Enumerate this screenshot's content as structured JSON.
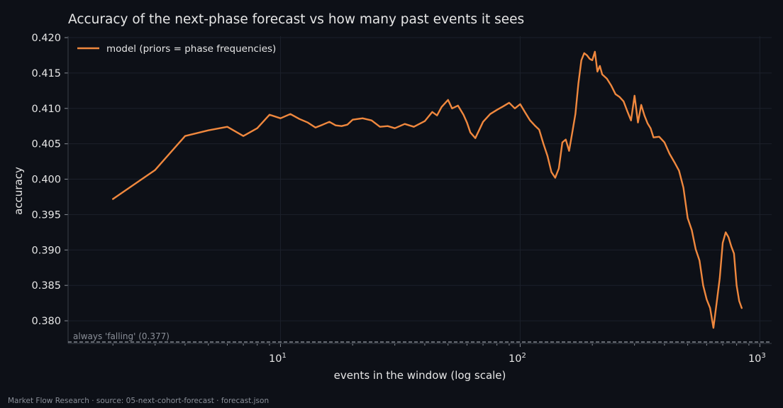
{
  "chart_data": {
    "type": "line",
    "title": "Accuracy of the next-phase forecast vs how many past events it sees",
    "xlabel": "events in the window (log scale)",
    "ylabel": "accuracy",
    "x_scale": "log",
    "xlim": [
      1.3,
      1120
    ],
    "ylim": [
      0.3768,
      0.4202
    ],
    "x_ticks": [
      10,
      100,
      1000
    ],
    "x_tick_labels": [
      {
        "base": "10",
        "exp": "1"
      },
      {
        "base": "10",
        "exp": "2"
      },
      {
        "base": "10",
        "exp": "3"
      }
    ],
    "y_ticks": [
      0.38,
      0.385,
      0.39,
      0.395,
      0.4,
      0.405,
      0.41,
      0.415,
      0.42
    ],
    "y_tick_labels": [
      "0.380",
      "0.385",
      "0.390",
      "0.395",
      "0.400",
      "0.405",
      "0.410",
      "0.415",
      "0.420"
    ],
    "grid": true,
    "legend_position": "top-left",
    "series": [
      {
        "name": "model (priors = phase frequencies)",
        "color": "#f0883e",
        "x": [
          2,
          3,
          4,
          5,
          6,
          7,
          8,
          9,
          10,
          11,
          12,
          13,
          14,
          15,
          16,
          17,
          18,
          19,
          20,
          22,
          24,
          26,
          28,
          30,
          33,
          36,
          40,
          43,
          45,
          47,
          50,
          52,
          55,
          58,
          60,
          62,
          65,
          70,
          75,
          80,
          85,
          90,
          95,
          100,
          105,
          110,
          115,
          120,
          125,
          130,
          135,
          140,
          145,
          150,
          155,
          160,
          165,
          170,
          175,
          180,
          185,
          190,
          195,
          200,
          205,
          210,
          215,
          220,
          230,
          240,
          250,
          260,
          270,
          280,
          290,
          300,
          310,
          320,
          330,
          340,
          350,
          360,
          380,
          400,
          420,
          440,
          460,
          480,
          500,
          520,
          540,
          560,
          580,
          600,
          620,
          640,
          660,
          680,
          700,
          720,
          740,
          760,
          780,
          800,
          820,
          840
        ],
        "y": [
          0.3972,
          0.4013,
          0.4061,
          0.4069,
          0.4074,
          0.4061,
          0.4072,
          0.4091,
          0.4086,
          0.4092,
          0.4085,
          0.408,
          0.4073,
          0.4077,
          0.4081,
          0.4076,
          0.4075,
          0.4077,
          0.4084,
          0.4086,
          0.4083,
          0.4074,
          0.4075,
          0.4072,
          0.4078,
          0.4074,
          0.4082,
          0.4095,
          0.409,
          0.4102,
          0.4112,
          0.41,
          0.4104,
          0.4091,
          0.408,
          0.4066,
          0.4058,
          0.4081,
          0.4092,
          0.4098,
          0.4103,
          0.4108,
          0.41,
          0.4106,
          0.4094,
          0.4083,
          0.4076,
          0.407,
          0.405,
          0.4033,
          0.401,
          0.4002,
          0.4015,
          0.4052,
          0.4056,
          0.404,
          0.4066,
          0.4092,
          0.4135,
          0.4168,
          0.4178,
          0.4175,
          0.417,
          0.4168,
          0.418,
          0.4152,
          0.416,
          0.4148,
          0.4142,
          0.4132,
          0.412,
          0.4116,
          0.411,
          0.4096,
          0.4083,
          0.4118,
          0.408,
          0.4105,
          0.409,
          0.4079,
          0.4072,
          0.4059,
          0.406,
          0.4052,
          0.4036,
          0.4024,
          0.4012,
          0.3988,
          0.3945,
          0.3928,
          0.3901,
          0.3885,
          0.385,
          0.383,
          0.3818,
          0.379,
          0.3825,
          0.386,
          0.391,
          0.3925,
          0.3918,
          0.3905,
          0.3895,
          0.385,
          0.3828,
          0.3818
        ]
      }
    ],
    "baseline": {
      "label": "always 'falling' (0.377)",
      "value": 0.377,
      "color": "#9aa0a8",
      "style": "dashed"
    }
  },
  "footer": "Market Flow Research · source: 05-next-cohort-forecast · forecast.json"
}
